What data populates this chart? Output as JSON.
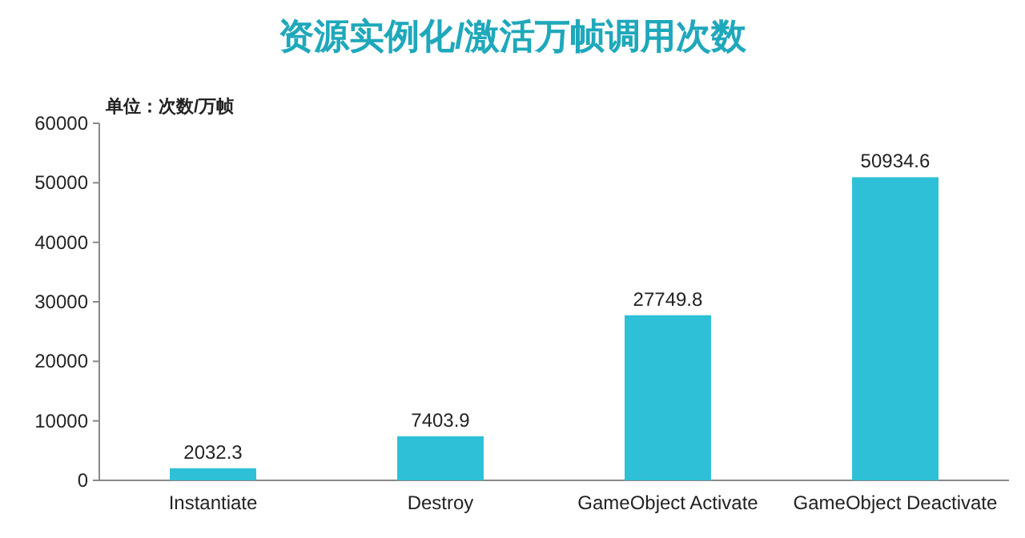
{
  "chart_data": {
    "type": "bar",
    "title": "资源实例化/激活万帧调用次数",
    "ylabel": "单位：次数/万帧",
    "categories": [
      "Instantiate",
      "Destroy",
      "GameObject Activate",
      "GameObject Deactivate"
    ],
    "values": [
      2032.3,
      7403.9,
      27749.8,
      50934.6
    ],
    "color": "#2ec0d6",
    "ylim": [
      0,
      60000
    ],
    "yticks": [
      0,
      10000,
      20000,
      30000,
      40000,
      50000,
      60000
    ],
    "data_labels": true,
    "grid": false
  }
}
